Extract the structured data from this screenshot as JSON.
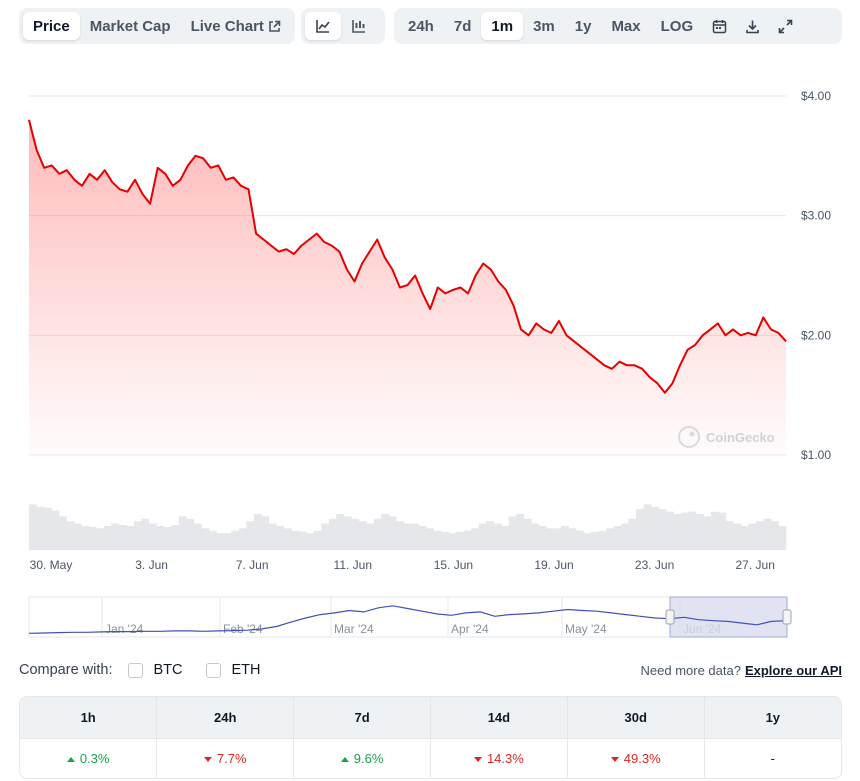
{
  "toolbar": {
    "view_tabs": [
      {
        "label": "Price",
        "active": true
      },
      {
        "label": "Market Cap",
        "active": false
      },
      {
        "label": "Live Chart",
        "active": false
      }
    ],
    "chart_types": [
      {
        "icon": "line-chart-icon",
        "active": true
      },
      {
        "icon": "candlestick-chart-icon",
        "active": false
      }
    ],
    "ranges": [
      {
        "label": "24h",
        "active": false
      },
      {
        "label": "7d",
        "active": false
      },
      {
        "label": "1m",
        "active": true
      },
      {
        "label": "3m",
        "active": false
      },
      {
        "label": "1y",
        "active": false
      },
      {
        "label": "Max",
        "active": false
      },
      {
        "label": "LOG",
        "active": false
      }
    ],
    "actions": [
      "calendar-icon",
      "download-icon",
      "expand-icon"
    ]
  },
  "watermark": "CoinGecko",
  "colors": {
    "price_line": "#e60000",
    "area_fill": "#ff6666",
    "volume_bar": "#e5e7eb",
    "navigator_line": "#4051b5",
    "navigator_selection": "#d9dcef",
    "grid": "#e5e7eb"
  },
  "chart_data": {
    "type": "line",
    "series": [
      {
        "values": [
          3.8,
          3.55,
          3.4,
          3.42,
          3.35,
          3.38,
          3.3,
          3.25,
          3.35,
          3.3,
          3.38,
          3.28,
          3.22,
          3.2,
          3.3,
          3.18,
          3.1,
          3.4,
          3.35,
          3.25,
          3.3,
          3.42,
          3.5,
          3.48,
          3.4,
          3.42,
          3.3,
          3.32,
          3.25,
          3.22,
          2.85,
          2.8,
          2.75,
          2.7,
          2.72,
          2.68,
          2.75,
          2.8,
          2.85,
          2.78,
          2.75,
          2.7,
          2.55,
          2.45,
          2.6,
          2.7,
          2.8,
          2.65,
          2.55,
          2.4,
          2.42,
          2.5,
          2.35,
          2.22,
          2.4,
          2.35,
          2.38,
          2.4,
          2.35,
          2.5,
          2.6,
          2.55,
          2.45,
          2.38,
          2.25,
          2.05,
          2.0,
          2.1,
          2.05,
          2.02,
          2.12,
          2.0,
          1.95,
          1.9,
          1.85,
          1.8,
          1.75,
          1.72,
          1.78,
          1.75,
          1.75,
          1.72,
          1.65,
          1.6,
          1.52,
          1.6,
          1.75,
          1.88,
          1.92,
          2.0,
          2.05,
          2.1,
          2.0,
          2.05,
          2.0,
          2.02,
          2.0,
          2.15,
          2.05,
          2.02,
          1.95
        ]
      }
    ],
    "x_ticks": [
      "30. May",
      "3. Jun",
      "7. Jun",
      "11. Jun",
      "15. Jun",
      "19. Jun",
      "23. Jun",
      "27. Jun"
    ],
    "y_ticks": [
      "$4.00",
      "$3.00",
      "$2.00",
      "$1.00"
    ],
    "ylim": [
      1.0,
      4.0
    ],
    "volume": [
      0.95,
      0.9,
      0.88,
      0.82,
      0.7,
      0.6,
      0.55,
      0.5,
      0.48,
      0.45,
      0.5,
      0.55,
      0.52,
      0.5,
      0.6,
      0.65,
      0.55,
      0.5,
      0.48,
      0.52,
      0.7,
      0.65,
      0.55,
      0.45,
      0.4,
      0.35,
      0.35,
      0.4,
      0.45,
      0.6,
      0.75,
      0.7,
      0.55,
      0.5,
      0.45,
      0.4,
      0.38,
      0.35,
      0.4,
      0.55,
      0.65,
      0.75,
      0.7,
      0.65,
      0.6,
      0.55,
      0.65,
      0.75,
      0.7,
      0.6,
      0.55,
      0.55,
      0.5,
      0.45,
      0.4,
      0.38,
      0.35,
      0.38,
      0.4,
      0.45,
      0.55,
      0.6,
      0.55,
      0.5,
      0.7,
      0.75,
      0.65,
      0.55,
      0.5,
      0.45,
      0.45,
      0.5,
      0.45,
      0.4,
      0.35,
      0.38,
      0.4,
      0.45,
      0.5,
      0.55,
      0.65,
      0.85,
      0.95,
      0.9,
      0.85,
      0.8,
      0.75,
      0.78,
      0.8,
      0.75,
      0.7,
      0.8,
      0.78,
      0.6,
      0.55,
      0.5,
      0.55,
      0.6,
      0.65,
      0.6,
      0.5
    ],
    "navigator": {
      "labels": [
        "Jan '24",
        "Feb '24",
        "Mar '24",
        "Apr '24",
        "May '24",
        "Jun '24"
      ],
      "values": [
        0.05,
        0.06,
        0.07,
        0.08,
        0.08,
        0.09,
        0.1,
        0.1,
        0.11,
        0.11,
        0.12,
        0.12,
        0.11,
        0.12,
        0.13,
        0.14,
        0.18,
        0.25,
        0.38,
        0.5,
        0.6,
        0.65,
        0.72,
        0.68,
        0.8,
        0.86,
        0.78,
        0.7,
        0.62,
        0.58,
        0.65,
        0.68,
        0.55,
        0.6,
        0.62,
        0.65,
        0.7,
        0.75,
        0.72,
        0.7,
        0.65,
        0.6,
        0.55,
        0.5,
        0.48,
        0.52,
        0.45,
        0.42,
        0.4,
        0.35,
        0.3,
        0.4,
        0.42
      ]
    }
  },
  "compare": {
    "label": "Compare with:",
    "options": [
      "BTC",
      "ETH"
    ],
    "more_text": "Need more data?",
    "more_link": "Explore our API"
  },
  "performance": {
    "headers": [
      "1h",
      "24h",
      "7d",
      "14d",
      "30d",
      "1y"
    ],
    "values": [
      {
        "text": "0.3%",
        "dir": "up"
      },
      {
        "text": "7.7%",
        "dir": "down"
      },
      {
        "text": "9.6%",
        "dir": "up"
      },
      {
        "text": "14.3%",
        "dir": "down"
      },
      {
        "text": "49.3%",
        "dir": "down"
      },
      {
        "text": "-",
        "dir": "none"
      }
    ]
  }
}
